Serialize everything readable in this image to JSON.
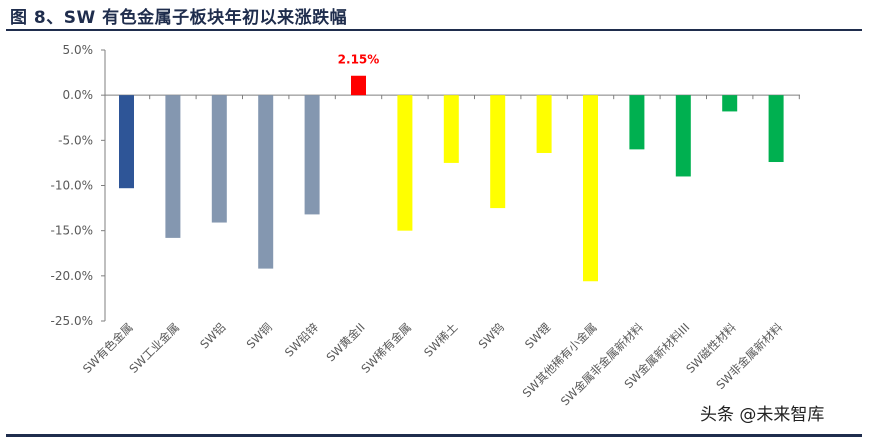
{
  "title": "图 8、SW 有色金属子板块年初以来涨跌幅",
  "watermark": "头条 @未来智库",
  "colors": {
    "title": "#1f2d4d",
    "rule": "#1f2d4d",
    "axis": "#7f7f7f",
    "tick_text": "#595959",
    "label_red": "#ff0000"
  },
  "chart_data": {
    "type": "bar",
    "title": "",
    "xlabel": "",
    "ylabel": "",
    "ylim": [
      -25,
      5
    ],
    "yticks": [
      5,
      0,
      -5,
      -10,
      -15,
      -20,
      -25
    ],
    "ytick_labels": [
      "5.0%",
      "0.0%",
      "-5.0%",
      "-10.0%",
      "-15.0%",
      "-20.0%",
      "-25.0%"
    ],
    "grid": false,
    "legend": "none",
    "categories": [
      "SW有色金属",
      "SW工业金属",
      "SW铝",
      "SW铜",
      "SW铅锌",
      "SW黄金II",
      "SW稀有金属",
      "SW稀土",
      "SW钨",
      "SW锂",
      "SW其他稀有小金属",
      "SW金属非金属新材料",
      "SW金属新材料III",
      "SW磁性材料",
      "SW非金属新材料"
    ],
    "values": [
      -10.3,
      -15.8,
      -14.1,
      -19.2,
      -13.2,
      2.15,
      -15.0,
      -7.5,
      -12.5,
      -6.4,
      -20.6,
      -6.0,
      -9.0,
      -1.8,
      -7.4
    ],
    "colors": [
      "#2e5597",
      "#8497b0",
      "#8497b0",
      "#8497b0",
      "#8497b0",
      "#ff0000",
      "#ffff00",
      "#ffff00",
      "#ffff00",
      "#ffff00",
      "#ffff00",
      "#00b050",
      "#00b050",
      "#00b050",
      "#00b050"
    ],
    "data_labels": [
      {
        "category": "SW黄金II",
        "text": "2.15%"
      }
    ]
  }
}
